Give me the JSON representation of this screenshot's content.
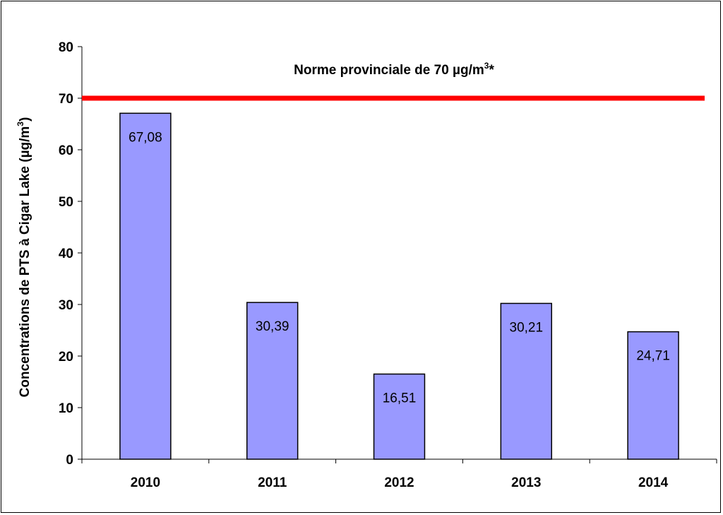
{
  "chart_data": {
    "type": "bar",
    "categories": [
      "2010",
      "2011",
      "2012",
      "2013",
      "2014"
    ],
    "values": [
      67.08,
      30.39,
      16.51,
      30.21,
      24.71
    ],
    "value_labels": [
      "67,08",
      "30,39",
      "16,51",
      "30,21",
      "24,71"
    ],
    "title": "",
    "xlabel": "",
    "ylabel_prefix": "Concentrations de PTS à Cigar Lake (µg/m",
    "ylabel_sup": "3",
    "ylabel_suffix": ")",
    "ylim": [
      0,
      80
    ],
    "yticks": [
      0,
      10,
      20,
      30,
      40,
      50,
      60,
      70,
      80
    ],
    "grid": false,
    "bar_color": "#9999ff",
    "reference_line": {
      "value": 70,
      "color": "#ff0000",
      "label_main": "Norme provinciale de 70 µg/m",
      "label_sup": "3",
      "label_tail": "*"
    }
  }
}
